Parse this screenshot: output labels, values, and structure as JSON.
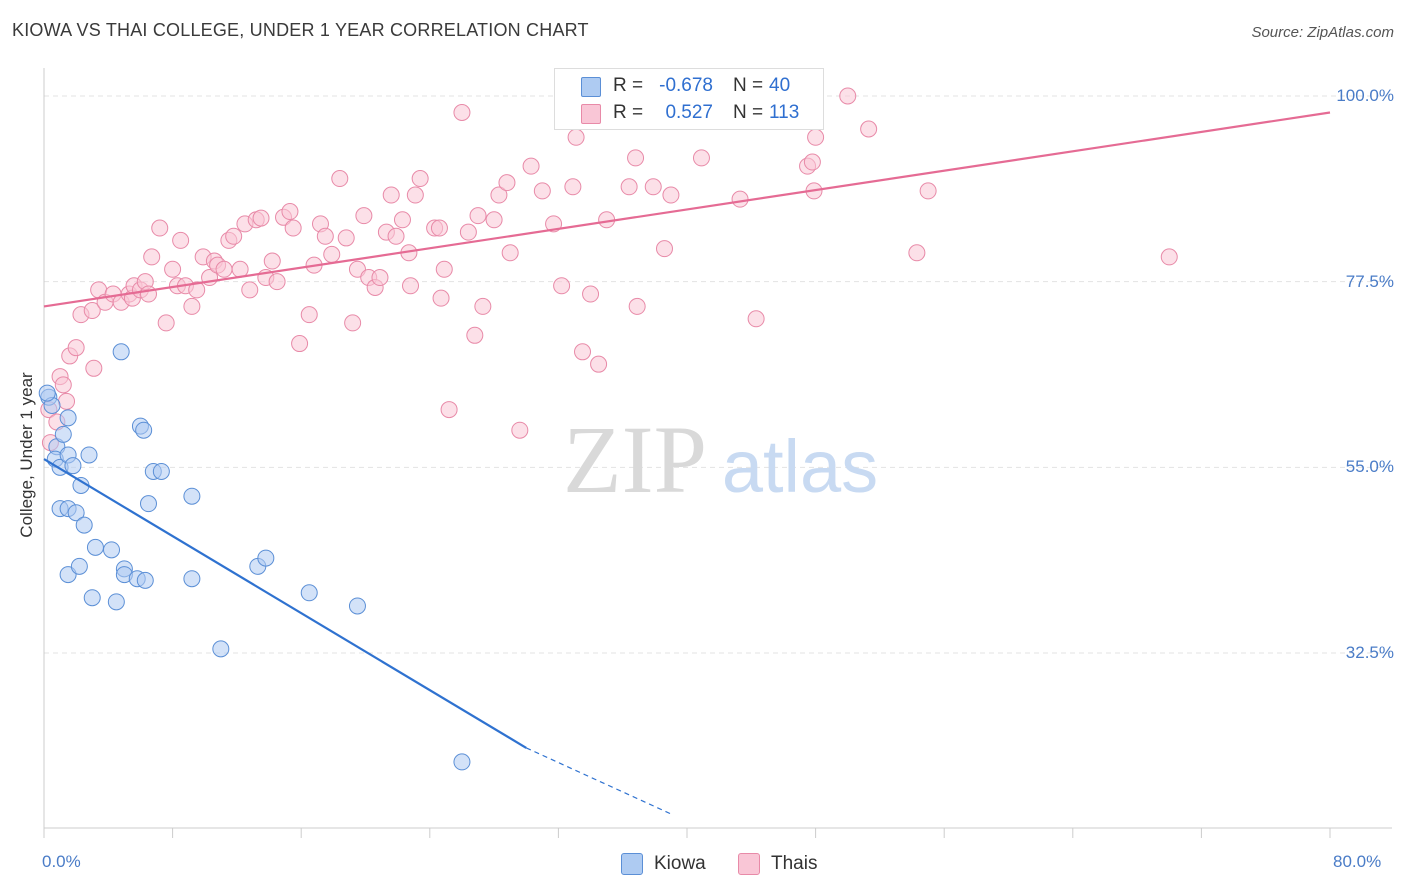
{
  "chart_data": {
    "type": "scatter",
    "title": "KIOWA VS THAI COLLEGE, UNDER 1 YEAR CORRELATION CHART",
    "source": "Source: ZipAtlas.com",
    "xlabel": "",
    "ylabel": "College, Under 1 year",
    "xlim": [
      0,
      80
    ],
    "ylim": [
      13,
      102
    ],
    "x_tick_labels": [
      "0.0%",
      "80.0%"
    ],
    "y_ticks": [
      {
        "value": 100,
        "label": "100.0%"
      },
      {
        "value": 77.5,
        "label": "77.5%"
      },
      {
        "value": 55,
        "label": "55.0%"
      },
      {
        "value": 32.5,
        "label": "32.5%"
      }
    ],
    "watermark": {
      "zip": "ZIP",
      "atlas": "atlas"
    },
    "legend": [
      {
        "name": "Kiowa",
        "r_label": "R =",
        "r": "-0.678",
        "n_label": "N =",
        "n": "40",
        "fill": "#aecbf2",
        "stroke": "#5b8fd6"
      },
      {
        "name": "Thais",
        "r_label": "R =",
        "r": "0.527",
        "n_label": "N =",
        "n": "113",
        "fill": "#f9c6d6",
        "stroke": "#e88aa8"
      }
    ],
    "series": [
      {
        "name": "Kiowa",
        "color": "#5b8fd6",
        "fill": "#aecbf2",
        "trend": {
          "x0": 0,
          "y0": 56.0,
          "x1": 30.0,
          "y1": 21.0,
          "dash_to_x": 39.0,
          "dash_to_y": 13.0,
          "color": "#2f72d0"
        },
        "points": [
          [
            0.3,
            63.5
          ],
          [
            0.5,
            62.5
          ],
          [
            0.8,
            57.5
          ],
          [
            0.7,
            56.0
          ],
          [
            1.0,
            55.0
          ],
          [
            1.2,
            59.0
          ],
          [
            1.5,
            61.0
          ],
          [
            1.5,
            56.5
          ],
          [
            1.8,
            55.2
          ],
          [
            1.0,
            50.0
          ],
          [
            1.5,
            50.0
          ],
          [
            2.0,
            49.5
          ],
          [
            2.3,
            52.8
          ],
          [
            2.5,
            48.0
          ],
          [
            2.8,
            56.5
          ],
          [
            3.2,
            45.3
          ],
          [
            1.5,
            42.0
          ],
          [
            2.2,
            43.0
          ],
          [
            3.0,
            39.2
          ],
          [
            4.2,
            45.0
          ],
          [
            4.5,
            38.7
          ],
          [
            5.0,
            42.7
          ],
          [
            6.0,
            60.0
          ],
          [
            6.2,
            59.5
          ],
          [
            5.0,
            42.0
          ],
          [
            5.8,
            41.5
          ],
          [
            6.3,
            41.3
          ],
          [
            6.5,
            50.6
          ],
          [
            6.8,
            54.5
          ],
          [
            7.3,
            54.5
          ],
          [
            9.2,
            51.5
          ],
          [
            9.2,
            41.5
          ],
          [
            11.0,
            33.0
          ],
          [
            13.3,
            43.0
          ],
          [
            13.8,
            44.0
          ],
          [
            16.5,
            39.8
          ],
          [
            19.5,
            38.2
          ],
          [
            26.0,
            19.3
          ],
          [
            4.8,
            69.0
          ],
          [
            0.2,
            64.0
          ]
        ]
      },
      {
        "name": "Thais",
        "color": "#e88aa8",
        "fill": "#f9c6d6",
        "trend": {
          "x0": 0,
          "y0": 74.5,
          "x1": 80.0,
          "y1": 98.0,
          "color": "#e56b94"
        },
        "points": [
          [
            0.3,
            62.0
          ],
          [
            0.4,
            58.0
          ],
          [
            1.0,
            66.0
          ],
          [
            1.2,
            65.0
          ],
          [
            1.6,
            68.5
          ],
          [
            2.0,
            69.5
          ],
          [
            2.3,
            73.5
          ],
          [
            3.0,
            74.0
          ],
          [
            3.1,
            67.0
          ],
          [
            3.4,
            76.5
          ],
          [
            3.8,
            75.0
          ],
          [
            4.3,
            76.0
          ],
          [
            4.8,
            75.0
          ],
          [
            5.3,
            76.0
          ],
          [
            5.5,
            75.5
          ],
          [
            5.6,
            77.0
          ],
          [
            6.0,
            76.5
          ],
          [
            6.3,
            77.5
          ],
          [
            6.5,
            76.0
          ],
          [
            6.7,
            80.5
          ],
          [
            7.2,
            84.0
          ],
          [
            7.6,
            72.5
          ],
          [
            8.0,
            79.0
          ],
          [
            8.3,
            77.0
          ],
          [
            8.5,
            82.5
          ],
          [
            8.8,
            77.0
          ],
          [
            9.2,
            74.5
          ],
          [
            9.5,
            76.5
          ],
          [
            9.9,
            80.5
          ],
          [
            10.3,
            78.0
          ],
          [
            10.6,
            80.0
          ],
          [
            10.8,
            79.5
          ],
          [
            11.2,
            79.0
          ],
          [
            11.5,
            82.5
          ],
          [
            11.8,
            83.0
          ],
          [
            12.2,
            79.0
          ],
          [
            12.5,
            84.5
          ],
          [
            12.8,
            76.5
          ],
          [
            13.2,
            85.0
          ],
          [
            13.5,
            85.2
          ],
          [
            13.8,
            78.0
          ],
          [
            14.2,
            80.0
          ],
          [
            14.5,
            77.5
          ],
          [
            14.9,
            85.3
          ],
          [
            15.3,
            86.0
          ],
          [
            15.5,
            84.0
          ],
          [
            15.9,
            70.0
          ],
          [
            16.5,
            73.5
          ],
          [
            16.8,
            79.5
          ],
          [
            17.2,
            84.5
          ],
          [
            17.5,
            83.0
          ],
          [
            17.9,
            80.8
          ],
          [
            18.4,
            90.0
          ],
          [
            18.8,
            82.8
          ],
          [
            19.2,
            72.5
          ],
          [
            19.5,
            79.0
          ],
          [
            19.9,
            85.5
          ],
          [
            20.2,
            78.0
          ],
          [
            20.6,
            76.8
          ],
          [
            20.9,
            78.0
          ],
          [
            21.3,
            83.5
          ],
          [
            21.6,
            88.0
          ],
          [
            21.9,
            83.0
          ],
          [
            22.3,
            85.0
          ],
          [
            22.7,
            81.0
          ],
          [
            22.8,
            77.0
          ],
          [
            23.1,
            88.0
          ],
          [
            23.4,
            90.0
          ],
          [
            24.3,
            84.0
          ],
          [
            24.6,
            84.0
          ],
          [
            24.7,
            75.5
          ],
          [
            24.9,
            79.0
          ],
          [
            25.2,
            62.0
          ],
          [
            26.0,
            98.0
          ],
          [
            26.4,
            83.5
          ],
          [
            26.8,
            71.0
          ],
          [
            27.0,
            85.5
          ],
          [
            27.3,
            74.5
          ],
          [
            28.0,
            85.0
          ],
          [
            28.3,
            88.0
          ],
          [
            28.8,
            89.5
          ],
          [
            29.0,
            81.0
          ],
          [
            29.6,
            59.5
          ],
          [
            30.3,
            91.5
          ],
          [
            31.0,
            88.5
          ],
          [
            31.7,
            84.5
          ],
          [
            32.2,
            77.0
          ],
          [
            32.9,
            89.0
          ],
          [
            33.1,
            95.0
          ],
          [
            33.5,
            69.0
          ],
          [
            34.0,
            76.0
          ],
          [
            34.5,
            67.5
          ],
          [
            35.0,
            85.0
          ],
          [
            36.4,
            89.0
          ],
          [
            36.8,
            92.5
          ],
          [
            36.9,
            74.5
          ],
          [
            37.9,
            89.0
          ],
          [
            38.6,
            81.5
          ],
          [
            39.0,
            88.0
          ],
          [
            40.9,
            92.5
          ],
          [
            43.3,
            87.5
          ],
          [
            44.3,
            73.0
          ],
          [
            47.5,
            91.5
          ],
          [
            47.8,
            92.0
          ],
          [
            47.9,
            88.5
          ],
          [
            48.0,
            95.0
          ],
          [
            50.0,
            100.0
          ],
          [
            51.3,
            96.0
          ],
          [
            54.3,
            81.0
          ],
          [
            55.0,
            88.5
          ],
          [
            70.0,
            80.5
          ],
          [
            0.8,
            60.5
          ],
          [
            1.4,
            63.0
          ]
        ]
      }
    ]
  }
}
